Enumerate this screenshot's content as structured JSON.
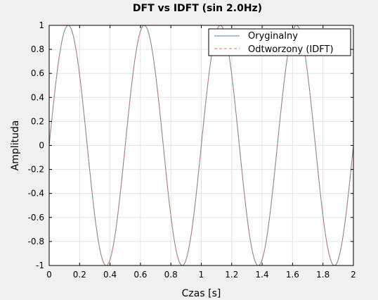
{
  "chart_data": {
    "type": "line",
    "title": "DFT vs IDFT (sin 2.0Hz)",
    "xlabel": "Czas [s]",
    "ylabel": "Amplituda",
    "xlim": [
      0,
      2
    ],
    "ylim": [
      -1,
      1
    ],
    "x_ticks": [
      "0",
      "0.2",
      "0.4",
      "0.6",
      "0.8",
      "1",
      "1.2",
      "1.4",
      "1.6",
      "1.8",
      "2"
    ],
    "y_ticks": [
      "1",
      "0.8",
      "0.6",
      "0.4",
      "0.2",
      "0",
      "-0.2",
      "-0.4",
      "-0.6",
      "-0.8",
      "-1"
    ],
    "grid": true,
    "legend_position": "top-right",
    "series": [
      {
        "name": "Oryginalny",
        "function": "sin(2*pi*2*t)",
        "frequency_hz": 2.0,
        "color": "#4a8aa8",
        "style": "solid"
      },
      {
        "name": "Odtworzony (IDFT)",
        "function": "sin(2*pi*2*t)",
        "frequency_hz": 2.0,
        "color": "#e8775a",
        "style": "dashed"
      }
    ]
  }
}
